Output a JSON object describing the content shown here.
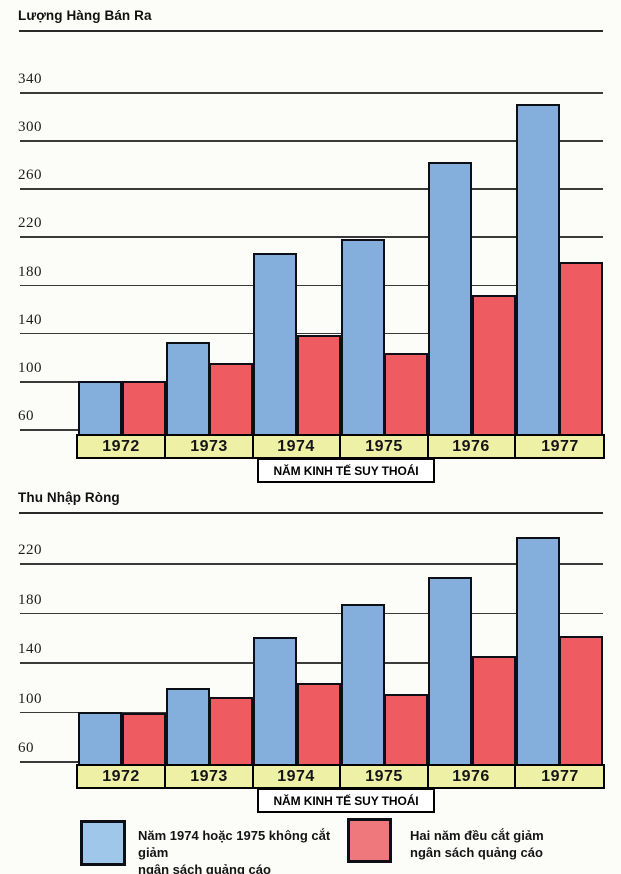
{
  "figure": {
    "description_note": "Two indexed bar charts comparing companies that kept vs cut ad budgets during the 1974-75 recession",
    "background": "#fcfcf9"
  },
  "colors": {
    "bar_blue": "#84afdc",
    "bar_red": "#ee5b60",
    "legend_blue": "#9ec7e9",
    "legend_red": "#ef787d",
    "band_yellow": "#eef0a6",
    "grid_line": "#3a3a3a",
    "bar_outline": "#0c1016",
    "annotation_bg": "#ffffff"
  },
  "chart_data": [
    {
      "type": "bar",
      "title": "Lượng Hàng Bán Ra",
      "categories": [
        "1972",
        "1973",
        "1974",
        "1975",
        "1976",
        "1977"
      ],
      "series": [
        {
          "name": "Năm 1974 hoặc 1975 không cắt giảm ngân sách quảng cáo",
          "color_key": "bar_blue",
          "values": [
            100,
            132,
            206,
            218,
            282,
            330
          ]
        },
        {
          "name": "Hai năm đều cắt giảm ngân sách quảng cáo",
          "color_key": "bar_red",
          "values": [
            100,
            115,
            138,
            123,
            171,
            199
          ]
        }
      ],
      "yticks": [
        340,
        300,
        260,
        220,
        180,
        140,
        100,
        60
      ],
      "ylim": [
        55,
        355
      ],
      "xlabel": "",
      "ylabel": "",
      "grid": true,
      "annotation": {
        "label": "NĂM KINH TẾ SUY THOÁI",
        "span_categories": [
          "1974",
          "1975"
        ]
      }
    },
    {
      "type": "bar",
      "title": "Thu Nhập Ròng",
      "categories": [
        "1972",
        "1973",
        "1974",
        "1975",
        "1976",
        "1977"
      ],
      "series": [
        {
          "name": "Năm 1974 hoặc 1975 không cắt giảm ngân sách quảng cáo",
          "color_key": "bar_blue",
          "values": [
            100,
            119,
            160,
            187,
            209,
            241
          ]
        },
        {
          "name": "Hai năm đều cắt giảm ngân sách quảng cáo",
          "color_key": "bar_red",
          "values": [
            99,
            112,
            123,
            114,
            145,
            161
          ]
        }
      ],
      "yticks": [
        220,
        180,
        140,
        100,
        60
      ],
      "ylim": [
        55,
        250
      ],
      "xlabel": "",
      "ylabel": "",
      "grid": true,
      "annotation": {
        "label": "NĂM KINH TẾ SUY THOÁI",
        "span_categories": [
          "1974",
          "1975"
        ]
      }
    }
  ],
  "legend": {
    "items": [
      {
        "swatch_color": "#9ec7e9",
        "line1": "Năm 1974 hoặc 1975 không cắt giảm",
        "line2": "ngân sách quảng cáo"
      },
      {
        "swatch_color": "#ef787d",
        "line1": "Hai năm đều cắt giảm",
        "line2": "ngân sách quảng cáo"
      }
    ]
  }
}
